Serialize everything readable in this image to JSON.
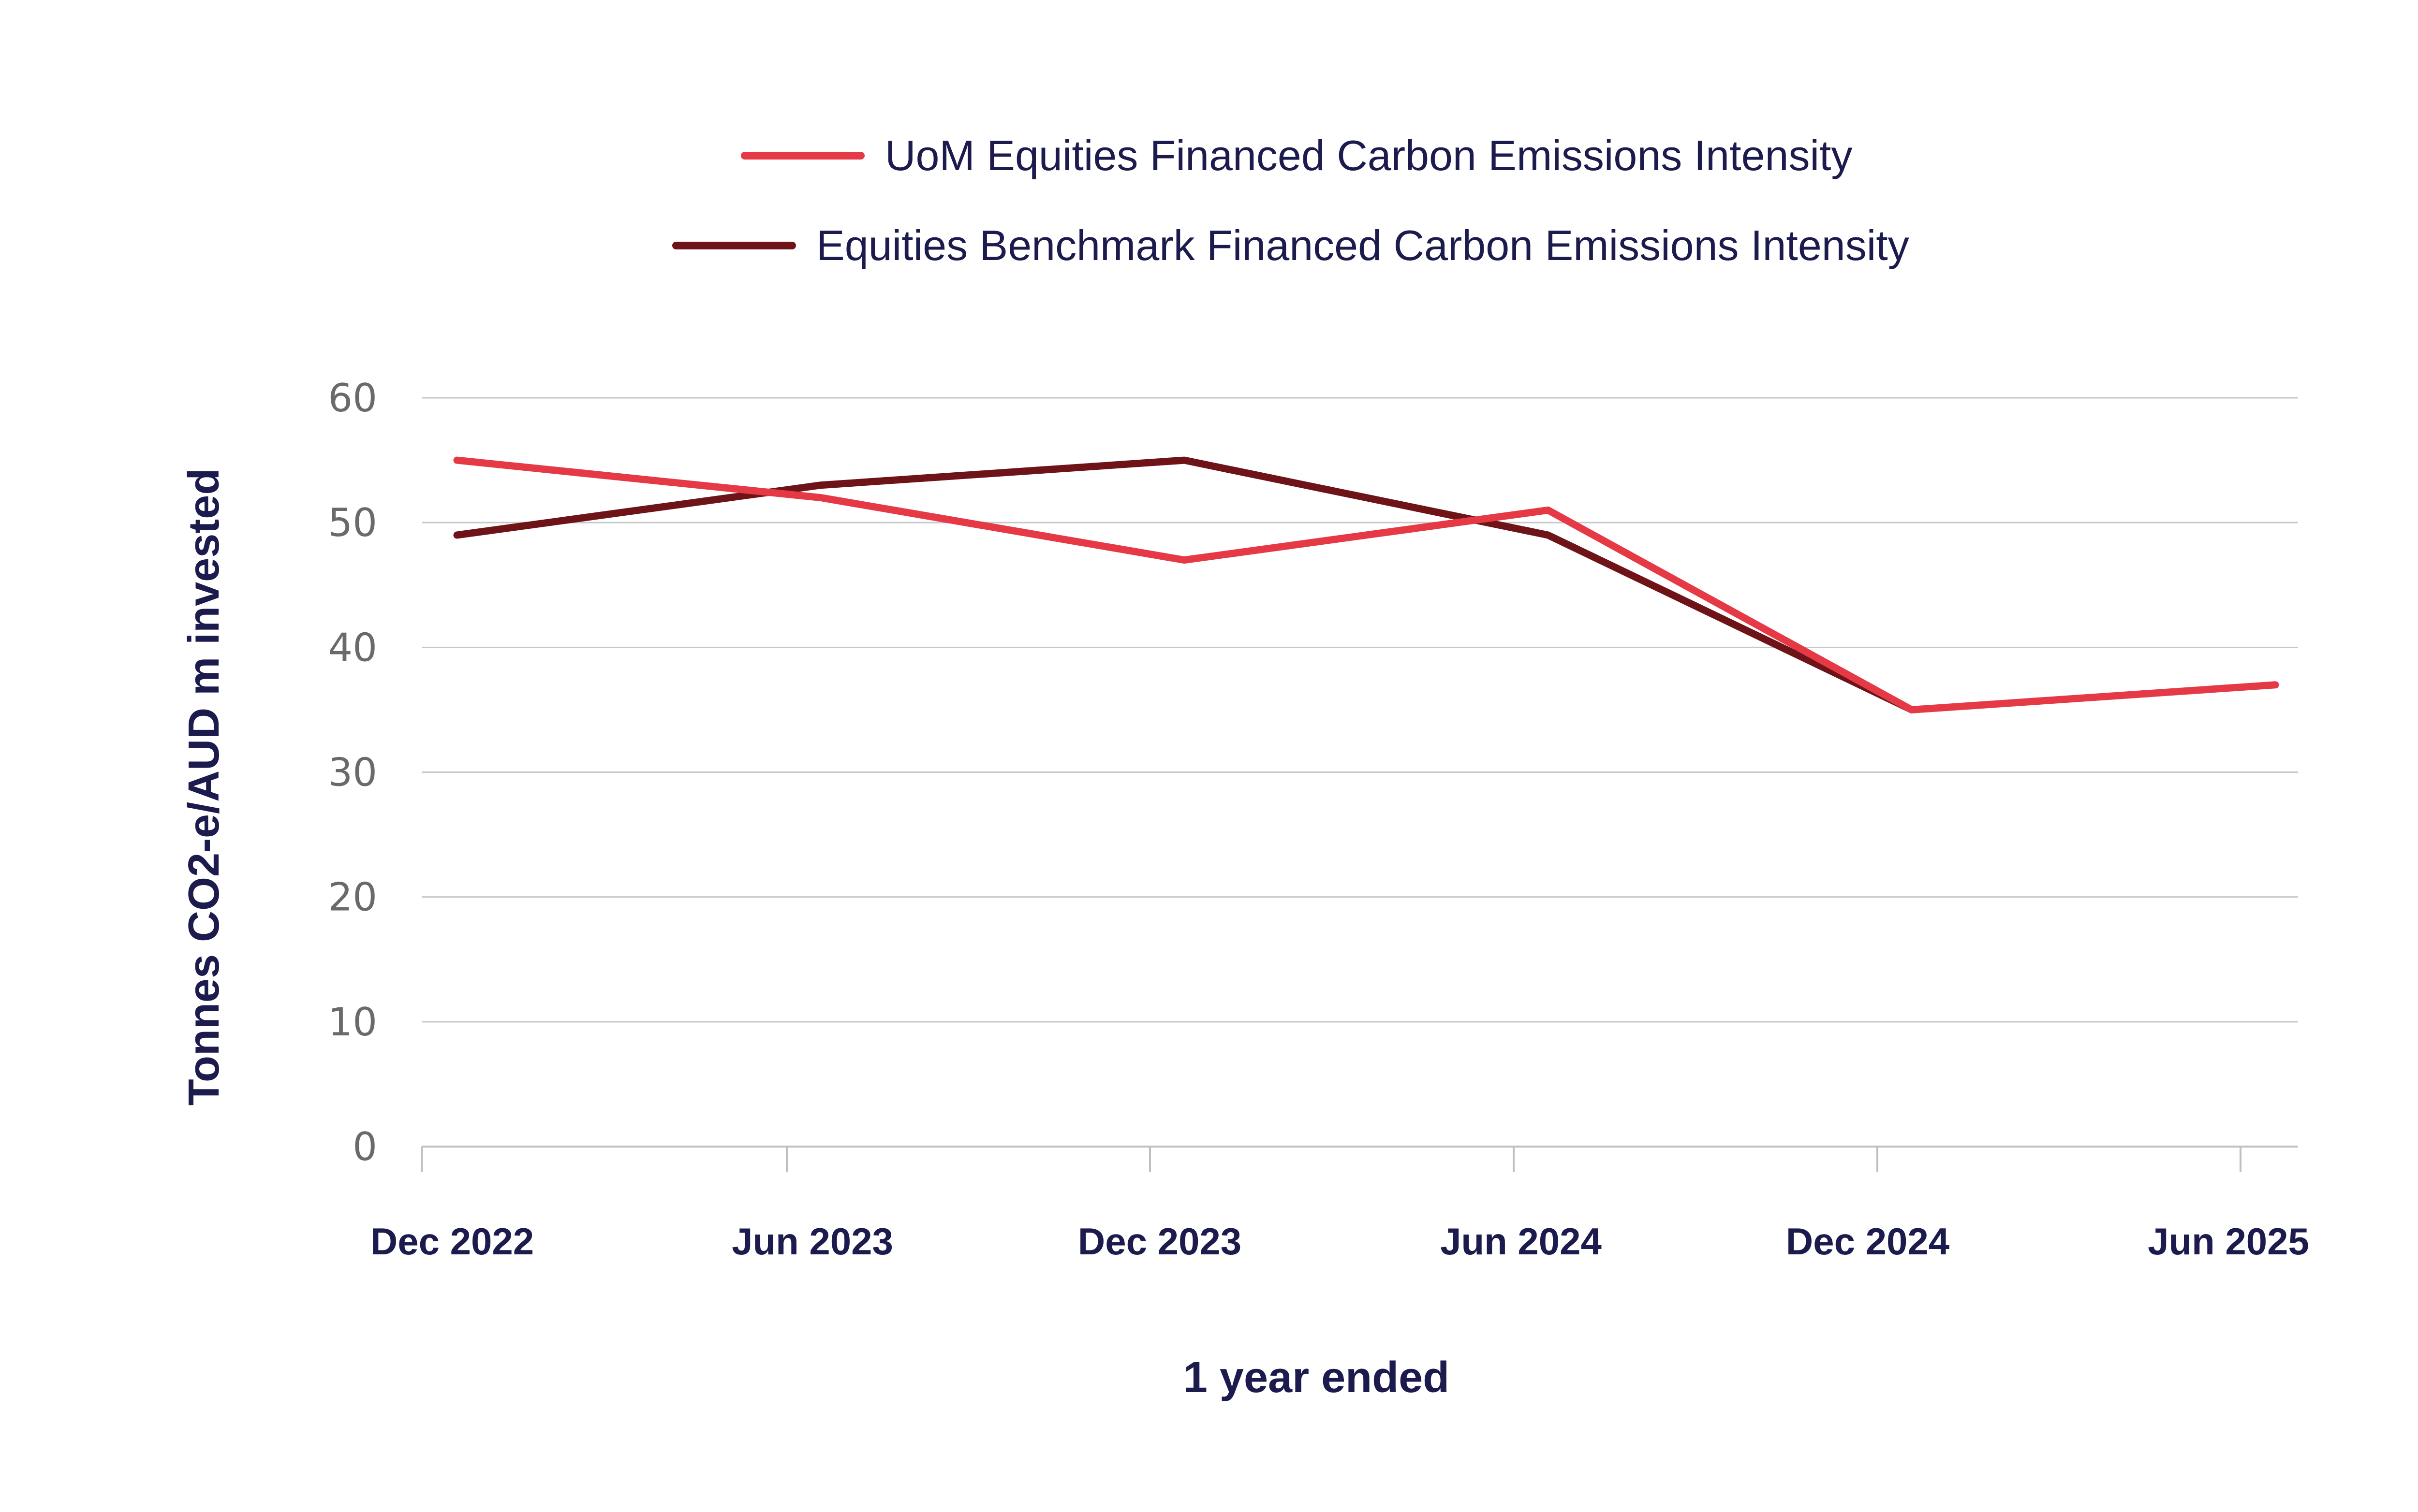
{
  "chart_data": {
    "type": "line",
    "title": "",
    "xlabel": "1 year ended",
    "ylabel": "Tonnes CO2-e/AUD m invested",
    "categories": [
      "Dec 2022",
      "Jun 2023",
      "Dec 2023",
      "Jun 2024",
      "Dec 2024",
      "Jun 2025"
    ],
    "yticks": [
      "0",
      "10",
      "20",
      "30",
      "40",
      "50",
      "60"
    ],
    "ylim": [
      0,
      60
    ],
    "grid": true,
    "legend_position": "top",
    "series": [
      {
        "name": "UoM Equities Financed Carbon Emissions Intensity",
        "color": "#e63946",
        "values": [
          55,
          52,
          47,
          51,
          35,
          37
        ]
      },
      {
        "name": "Equities Benchmark Financed Carbon Emissions Intensity",
        "color": "#6e1418",
        "values": [
          49,
          53,
          55,
          49,
          35,
          null
        ]
      }
    ]
  }
}
